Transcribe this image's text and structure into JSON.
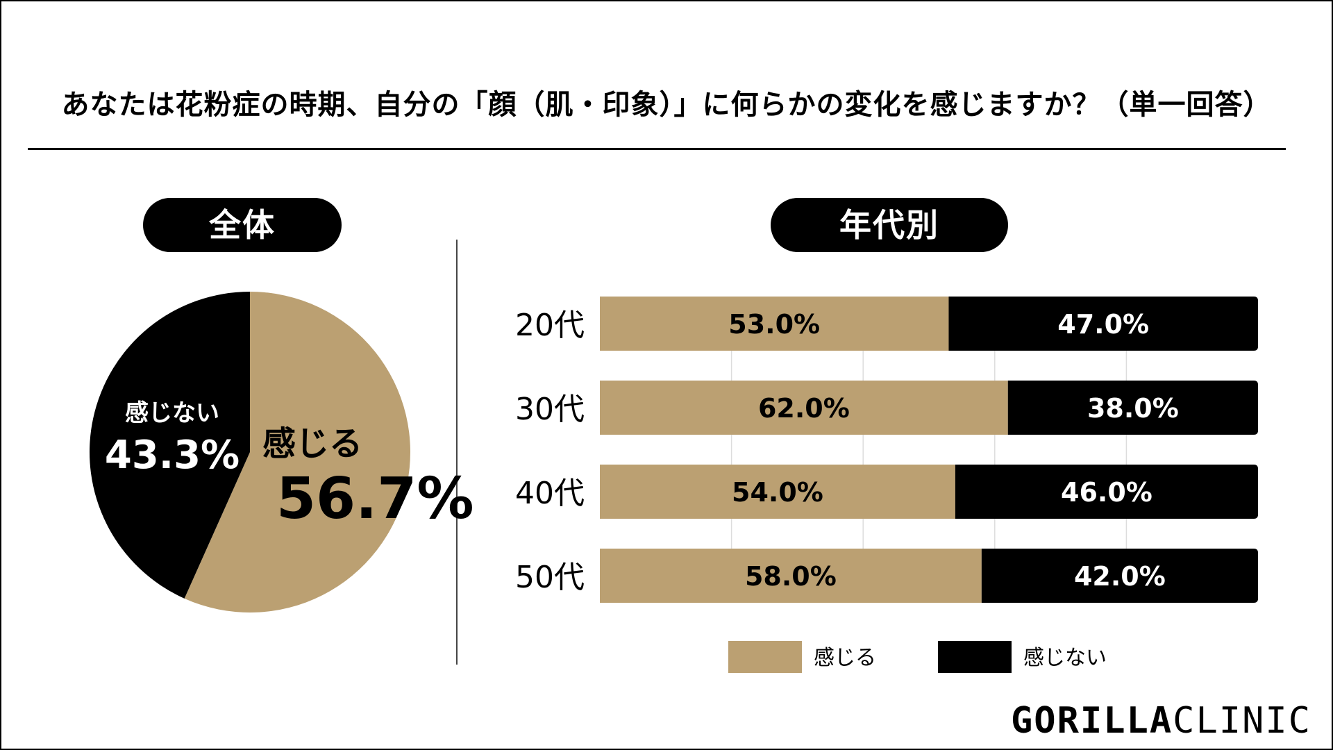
{
  "title": "あなたは花粉症の時期、自分の「顔（肌・印象）」に何らかの変化を感じますか？（単一回答）",
  "panels": {
    "overall_label": "全体",
    "age_label": "年代別"
  },
  "logo": {
    "bold": "GORILLA",
    "light": "CLINIC"
  },
  "colors": {
    "feel": "#bba072",
    "notfeel": "#000000",
    "grid": "#dddddd"
  },
  "chart_data": [
    {
      "type": "pie",
      "labels": [
        "感じる",
        "感じない"
      ],
      "values": [
        56.7,
        43.3
      ],
      "value_labels": [
        "56.7%",
        "43.3%"
      ],
      "colors": [
        "#bba072",
        "#000000"
      ]
    },
    {
      "type": "bar",
      "orientation": "horizontal",
      "stacked": true,
      "categories": [
        "20代",
        "30代",
        "40代",
        "50代"
      ],
      "series": [
        {
          "name": "感じる",
          "values": [
            53.0,
            62.0,
            54.0,
            58.0
          ],
          "labels": [
            "53.0%",
            "62.0%",
            "54.0%",
            "58.0%"
          ],
          "color": "#bba072"
        },
        {
          "name": "感じない",
          "values": [
            47.0,
            38.0,
            46.0,
            42.0
          ],
          "labels": [
            "47.0%",
            "38.0%",
            "46.0%",
            "42.0%"
          ],
          "color": "#000000"
        }
      ],
      "xlim": [
        0,
        100
      ],
      "grid": true,
      "legend": "bottom"
    }
  ]
}
